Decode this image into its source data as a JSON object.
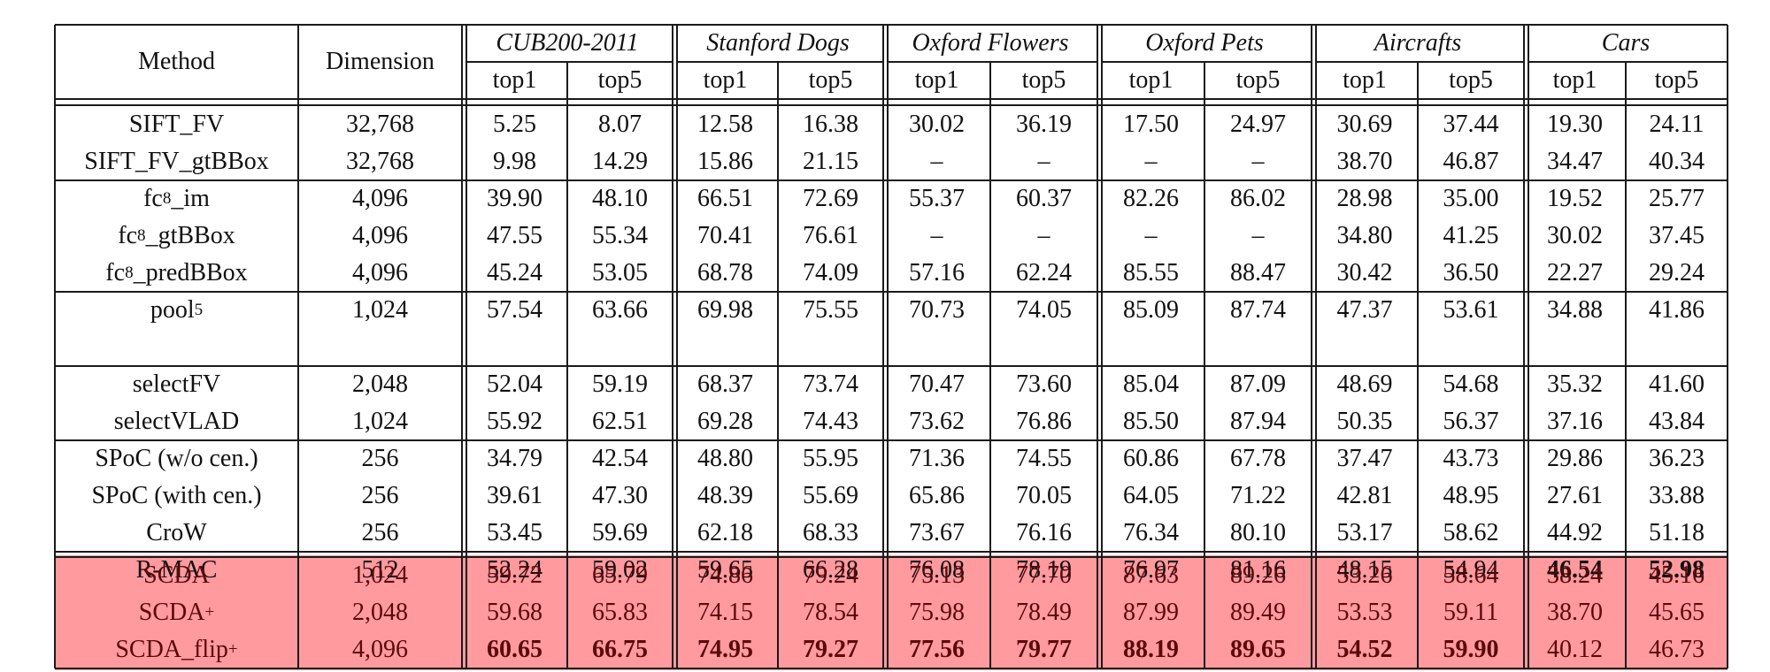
{
  "table": {
    "header": {
      "method": "Method",
      "dimension": "Dimension",
      "datasets": [
        "CUB200-2011",
        "Stanford Dogs",
        "Oxford Flowers",
        "Oxford Pets",
        "Aircrafts",
        "Cars"
      ],
      "sub": [
        "top1",
        "top5"
      ]
    },
    "groups": [
      {
        "highlight": false,
        "rows": [
          {
            "method": "SIFT_FV",
            "dim": "32,768",
            "vals": [
              "5.25",
              "8.07",
              "12.58",
              "16.38",
              "30.02",
              "36.19",
              "17.50",
              "24.97",
              "30.69",
              "37.44",
              "19.30",
              "24.11"
            ]
          },
          {
            "method": "SIFT_FV_gtBBox",
            "dim": "32,768",
            "vals": [
              "9.98",
              "14.29",
              "15.86",
              "21.15",
              "–",
              "–",
              "–",
              "–",
              "38.70",
              "46.87",
              "34.47",
              "40.34"
            ]
          }
        ]
      },
      {
        "highlight": false,
        "rows": [
          {
            "method": "fc",
            "sub": "8",
            "suffix": "_im",
            "dim": "4,096",
            "vals": [
              "39.90",
              "48.10",
              "66.51",
              "72.69",
              "55.37",
              "60.37",
              "82.26",
              "86.02",
              "28.98",
              "35.00",
              "19.52",
              "25.77"
            ]
          },
          {
            "method": "fc",
            "sub": "8",
            "suffix": "_gtBBox",
            "dim": "4,096",
            "vals": [
              "47.55",
              "55.34",
              "70.41",
              "76.61",
              "–",
              "–",
              "–",
              "–",
              "34.80",
              "41.25",
              "30.02",
              "37.45"
            ]
          },
          {
            "method": "fc",
            "sub": "8",
            "suffix": "_predBBox",
            "dim": "4,096",
            "vals": [
              "45.24",
              "53.05",
              "68.78",
              "74.09",
              "57.16",
              "62.24",
              "85.55",
              "88.47",
              "30.42",
              "36.50",
              "22.27",
              "29.24"
            ]
          }
        ]
      },
      {
        "highlight": false,
        "rows": [
          {
            "method": "pool",
            "sub": "5",
            "dim": "1,024",
            "vals": [
              "57.54",
              "63.66",
              "69.98",
              "75.55",
              "70.73",
              "74.05",
              "85.09",
              "87.74",
              "47.37",
              "53.61",
              "34.88",
              "41.86"
            ]
          }
        ]
      },
      {
        "highlight": false,
        "rows": [
          {
            "method": "selectFV",
            "dim": "2,048",
            "vals": [
              "52.04",
              "59.19",
              "68.37",
              "73.74",
              "70.47",
              "73.60",
              "85.04",
              "87.09",
              "48.69",
              "54.68",
              "35.32",
              "41.60"
            ]
          },
          {
            "method": "selectVLAD",
            "dim": "1,024",
            "vals": [
              "55.92",
              "62.51",
              "69.28",
              "74.43",
              "73.62",
              "76.86",
              "85.50",
              "87.94",
              "50.35",
              "56.37",
              "37.16",
              "43.84"
            ]
          }
        ]
      },
      {
        "highlight": false,
        "rows": [
          {
            "method": "SPoC (w/o cen.)",
            "dim": "256",
            "vals": [
              "34.79",
              "42.54",
              "48.80",
              "55.95",
              "71.36",
              "74.55",
              "60.86",
              "67.78",
              "37.47",
              "43.73",
              "29.86",
              "36.23"
            ]
          },
          {
            "method": "SPoC (with cen.)",
            "dim": "256",
            "vals": [
              "39.61",
              "47.30",
              "48.39",
              "55.69",
              "65.86",
              "70.05",
              "64.05",
              "71.22",
              "42.81",
              "48.95",
              "27.61",
              "33.88"
            ]
          },
          {
            "method": "CroW",
            "dim": "256",
            "vals": [
              "53.45",
              "59.69",
              "62.18",
              "68.33",
              "73.67",
              "76.16",
              "76.34",
              "80.10",
              "53.17",
              "58.62",
              "44.92",
              "51.18"
            ]
          },
          {
            "method": "R-MAC",
            "dim": "512",
            "vals": [
              "52.24",
              "59.02",
              "59.65",
              "66.28",
              "76.08",
              "78.19",
              "76.97",
              "81.16",
              "48.15",
              "54.94",
              "46.54",
              "52.98"
            ],
            "bold": [
              10,
              11
            ]
          }
        ]
      },
      {
        "highlight": true,
        "rows": [
          {
            "method": "SCDA",
            "dim": "1,024",
            "vals": [
              "59.72",
              "65.79",
              "74.86",
              "79.24",
              "75.13",
              "77.70",
              "87.63",
              "89.26",
              "53.26",
              "58.64",
              "38.24",
              "45.16"
            ]
          },
          {
            "method": "SCDA",
            "sup": "+",
            "dim": "2,048",
            "vals": [
              "59.68",
              "65.83",
              "74.15",
              "78.54",
              "75.98",
              "78.49",
              "87.99",
              "89.49",
              "53.53",
              "59.11",
              "38.70",
              "45.65"
            ]
          },
          {
            "method": "SCDA_flip",
            "sup": "+",
            "dim": "4,096",
            "vals": [
              "60.65",
              "66.75",
              "74.95",
              "79.27",
              "77.56",
              "79.77",
              "88.19",
              "89.65",
              "54.52",
              "59.90",
              "40.12",
              "46.73"
            ],
            "bold": [
              0,
              1,
              2,
              3,
              4,
              5,
              6,
              7,
              8,
              9
            ]
          }
        ]
      }
    ],
    "colors": {
      "line": "#1a1a1a",
      "highlight_bg": "#ff9a9f",
      "highlight_text": "#5a0a0a"
    }
  }
}
